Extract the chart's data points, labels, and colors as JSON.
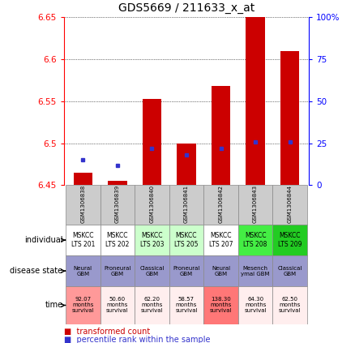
{
  "title": "GDS5669 / 211633_x_at",
  "samples": [
    "GSM1306838",
    "GSM1306839",
    "GSM1306840",
    "GSM1306841",
    "GSM1306842",
    "GSM1306843",
    "GSM1306844"
  ],
  "red_values": [
    6.465,
    6.455,
    6.553,
    6.5,
    6.568,
    6.672,
    6.61
  ],
  "blue_percentile": [
    15,
    12,
    22,
    18,
    22,
    26,
    26
  ],
  "ylim_left": [
    6.45,
    6.65
  ],
  "ylim_right": [
    0,
    100
  ],
  "yticks_left": [
    6.45,
    6.5,
    6.55,
    6.6,
    6.65
  ],
  "yticks_right": [
    0,
    25,
    50,
    75,
    100
  ],
  "individual_labels": [
    "MSKCC\nLTS 201",
    "MSKCC\nLTS 202",
    "MSKCC\nLTS 203",
    "MSKCC\nLTS 205",
    "MSKCC\nLTS 207",
    "MSKCC\nLTS 208",
    "MSKCC\nLTS 209"
  ],
  "individual_bg": [
    "#ffffff",
    "#ffffff",
    "#ccffcc",
    "#ccffcc",
    "#ffffff",
    "#44ee44",
    "#22cc22"
  ],
  "disease_labels": [
    "Neural\nGBM",
    "Proneural\nGBM",
    "Classical\nGBM",
    "Proneural\nGBM",
    "Neural\nGBM",
    "Mesench\nymal GBM",
    "Classical\nGBM"
  ],
  "disease_bg": [
    "#9999cc",
    "#9999cc",
    "#9999cc",
    "#9999cc",
    "#9999cc",
    "#9999cc",
    "#9999cc"
  ],
  "time_labels": [
    "92.07\nmonths\nsurvival",
    "50.60\nmonths\nsurvival",
    "62.20\nmonths\nsurvival",
    "58.57\nmonths\nsurvival",
    "138.30\nmonths\nsurvival",
    "64.30\nmonths\nsurvival",
    "62.50\nmonths\nsurvival"
  ],
  "time_bg": [
    "#ff9999",
    "#ffeeee",
    "#ffeeee",
    "#ffeeee",
    "#ff7777",
    "#ffeeee",
    "#ffeeee"
  ],
  "bar_color": "#cc0000",
  "dot_color": "#3333cc",
  "baseline": 6.45,
  "gray_bg": "#cccccc"
}
